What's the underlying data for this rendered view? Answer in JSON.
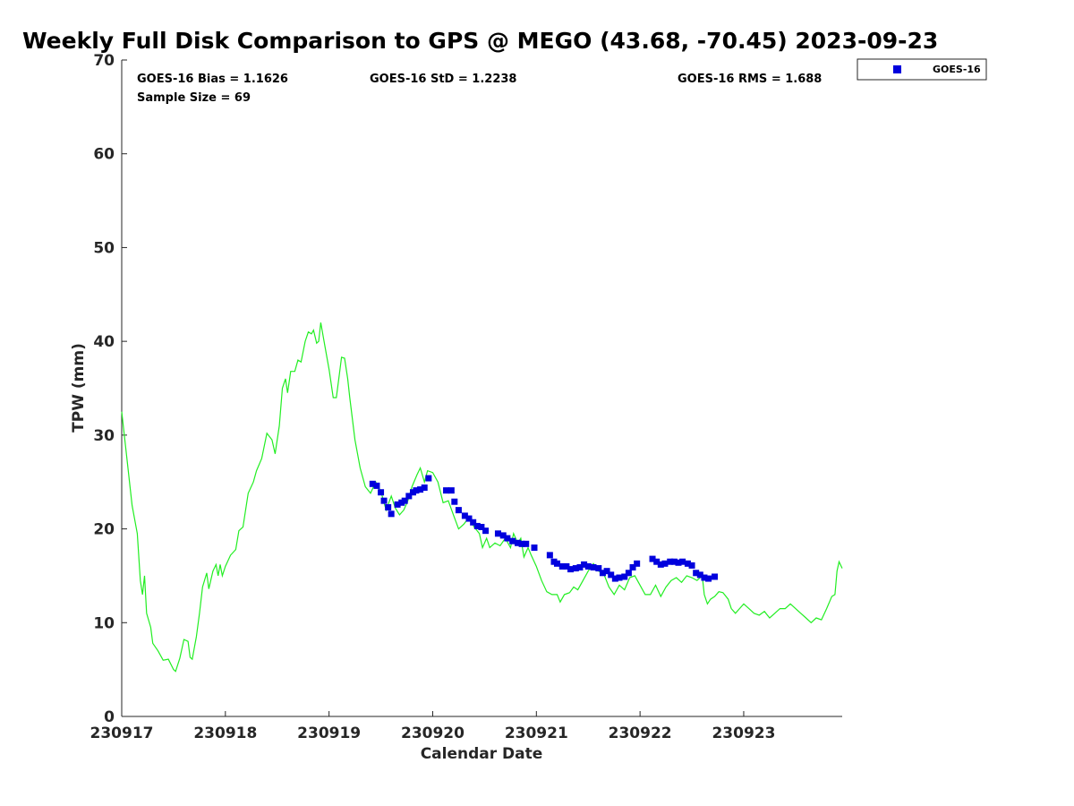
{
  "chart_data": {
    "type": "scatter",
    "title": "Weekly Full Disk Comparison to GPS @ MEGO (43.68, -70.45) 2023-09-23",
    "xlabel": "Calendar Date",
    "ylabel": "TPW (mm)",
    "xlim": [
      0,
      6.95
    ],
    "ylim": [
      0,
      70
    ],
    "x_ticks": [
      {
        "value": 0,
        "label": "230917"
      },
      {
        "value": 1,
        "label": "230918"
      },
      {
        "value": 2,
        "label": "230919"
      },
      {
        "value": 3,
        "label": "230920"
      },
      {
        "value": 4,
        "label": "230921"
      },
      {
        "value": 5,
        "label": "230922"
      },
      {
        "value": 6,
        "label": "230923"
      }
    ],
    "y_ticks": [
      0,
      10,
      20,
      30,
      40,
      50,
      60,
      70
    ],
    "stats": {
      "bias": "GOES-16 Bias = 1.1626",
      "std": "GOES-16 StD = 1.2238",
      "rms": "GOES-16 RMS = 1.688",
      "sample": "Sample Size = 69"
    },
    "legend": {
      "label": "GOES-16",
      "position": "top-right",
      "color": "#0000dd"
    },
    "series": [
      {
        "name": "GPS",
        "kind": "line",
        "color": "#22ee22",
        "points": [
          [
            0.0,
            32.5
          ],
          [
            0.05,
            27.5
          ],
          [
            0.1,
            22.5
          ],
          [
            0.15,
            19.5
          ],
          [
            0.18,
            14.5
          ],
          [
            0.2,
            13.0
          ],
          [
            0.22,
            15.0
          ],
          [
            0.24,
            11.0
          ],
          [
            0.28,
            9.5
          ],
          [
            0.3,
            7.8
          ],
          [
            0.35,
            7.0
          ],
          [
            0.4,
            6.0
          ],
          [
            0.45,
            6.1
          ],
          [
            0.5,
            5.0
          ],
          [
            0.52,
            4.8
          ],
          [
            0.56,
            6.2
          ],
          [
            0.6,
            8.2
          ],
          [
            0.64,
            8.0
          ],
          [
            0.66,
            6.3
          ],
          [
            0.68,
            6.1
          ],
          [
            0.72,
            8.5
          ],
          [
            0.75,
            11.0
          ],
          [
            0.78,
            13.8
          ],
          [
            0.82,
            15.3
          ],
          [
            0.84,
            13.6
          ],
          [
            0.88,
            15.5
          ],
          [
            0.91,
            16.2
          ],
          [
            0.93,
            15.0
          ],
          [
            0.95,
            16.2
          ],
          [
            0.97,
            15.0
          ],
          [
            1.0,
            16.0
          ],
          [
            1.05,
            17.2
          ],
          [
            1.1,
            17.8
          ],
          [
            1.13,
            19.8
          ],
          [
            1.17,
            20.2
          ],
          [
            1.22,
            23.8
          ],
          [
            1.27,
            25.0
          ],
          [
            1.3,
            26.2
          ],
          [
            1.35,
            27.5
          ],
          [
            1.4,
            30.2
          ],
          [
            1.45,
            29.5
          ],
          [
            1.48,
            28.0
          ],
          [
            1.52,
            31.0
          ],
          [
            1.55,
            35.0
          ],
          [
            1.58,
            36.0
          ],
          [
            1.6,
            34.5
          ],
          [
            1.63,
            36.8
          ],
          [
            1.67,
            36.8
          ],
          [
            1.7,
            38.0
          ],
          [
            1.73,
            37.8
          ],
          [
            1.77,
            40.0
          ],
          [
            1.8,
            41.0
          ],
          [
            1.83,
            40.8
          ],
          [
            1.85,
            41.2
          ],
          [
            1.88,
            39.8
          ],
          [
            1.9,
            40.0
          ],
          [
            1.92,
            42.0
          ],
          [
            1.96,
            39.5
          ],
          [
            2.0,
            37.0
          ],
          [
            2.04,
            34.0
          ],
          [
            2.07,
            34.0
          ],
          [
            2.1,
            36.5
          ],
          [
            2.12,
            38.3
          ],
          [
            2.15,
            38.2
          ],
          [
            2.18,
            36.0
          ],
          [
            2.2,
            34.0
          ],
          [
            2.25,
            29.5
          ],
          [
            2.3,
            26.5
          ],
          [
            2.35,
            24.5
          ],
          [
            2.4,
            23.8
          ],
          [
            2.45,
            25.0
          ],
          [
            2.5,
            24.0
          ],
          [
            2.55,
            22.0
          ],
          [
            2.6,
            23.5
          ],
          [
            2.64,
            22.2
          ],
          [
            2.68,
            21.5
          ],
          [
            2.72,
            22.0
          ],
          [
            2.76,
            23.0
          ],
          [
            2.8,
            24.5
          ],
          [
            2.85,
            25.8
          ],
          [
            2.88,
            26.5
          ],
          [
            2.92,
            25.0
          ],
          [
            2.95,
            26.2
          ],
          [
            3.0,
            26.0
          ],
          [
            3.05,
            25.0
          ],
          [
            3.1,
            22.8
          ],
          [
            3.15,
            23.0
          ],
          [
            3.2,
            21.5
          ],
          [
            3.25,
            20.0
          ],
          [
            3.3,
            20.5
          ],
          [
            3.35,
            21.2
          ],
          [
            3.4,
            20.2
          ],
          [
            3.45,
            19.5
          ],
          [
            3.48,
            18.0
          ],
          [
            3.52,
            19.0
          ],
          [
            3.55,
            18.0
          ],
          [
            3.6,
            18.5
          ],
          [
            3.65,
            18.2
          ],
          [
            3.7,
            19.0
          ],
          [
            3.75,
            18.0
          ],
          [
            3.78,
            19.5
          ],
          [
            3.82,
            18.5
          ],
          [
            3.85,
            19.0
          ],
          [
            3.88,
            17.0
          ],
          [
            3.92,
            18.0
          ],
          [
            3.95,
            17.2
          ],
          [
            4.0,
            16.0
          ],
          [
            4.05,
            14.5
          ],
          [
            4.1,
            13.3
          ],
          [
            4.15,
            13.0
          ],
          [
            4.2,
            13.0
          ],
          [
            4.23,
            12.2
          ],
          [
            4.27,
            13.0
          ],
          [
            4.32,
            13.2
          ],
          [
            4.36,
            13.8
          ],
          [
            4.4,
            13.5
          ],
          [
            4.45,
            14.5
          ],
          [
            4.5,
            15.5
          ],
          [
            4.55,
            16.3
          ],
          [
            4.6,
            15.5
          ],
          [
            4.65,
            15.2
          ],
          [
            4.7,
            13.8
          ],
          [
            4.75,
            13.0
          ],
          [
            4.8,
            14.0
          ],
          [
            4.85,
            13.5
          ],
          [
            4.9,
            14.8
          ],
          [
            4.95,
            15.0
          ],
          [
            5.0,
            14.0
          ],
          [
            5.05,
            13.0
          ],
          [
            5.1,
            13.0
          ],
          [
            5.15,
            14.0
          ],
          [
            5.2,
            12.8
          ],
          [
            5.25,
            13.8
          ],
          [
            5.3,
            14.5
          ],
          [
            5.35,
            14.8
          ],
          [
            5.4,
            14.3
          ],
          [
            5.45,
            15.0
          ],
          [
            5.5,
            14.8
          ],
          [
            5.55,
            14.5
          ],
          [
            5.6,
            15.0
          ],
          [
            5.62,
            13.0
          ],
          [
            5.65,
            12.0
          ],
          [
            5.68,
            12.5
          ],
          [
            5.72,
            12.8
          ],
          [
            5.76,
            13.3
          ],
          [
            5.8,
            13.2
          ],
          [
            5.85,
            12.5
          ],
          [
            5.88,
            11.5
          ],
          [
            5.92,
            11.0
          ],
          [
            5.96,
            11.5
          ],
          [
            6.0,
            12.0
          ],
          [
            6.05,
            11.5
          ],
          [
            6.1,
            11.0
          ],
          [
            6.15,
            10.8
          ],
          [
            6.2,
            11.2
          ],
          [
            6.25,
            10.5
          ],
          [
            6.3,
            11.0
          ],
          [
            6.35,
            11.5
          ],
          [
            6.4,
            11.5
          ],
          [
            6.45,
            12.0
          ],
          [
            6.5,
            11.5
          ],
          [
            6.55,
            11.0
          ],
          [
            6.6,
            10.5
          ],
          [
            6.65,
            10.0
          ],
          [
            6.7,
            10.5
          ],
          [
            6.75,
            10.3
          ],
          [
            6.8,
            11.5
          ],
          [
            6.85,
            12.8
          ],
          [
            6.88,
            13.0
          ],
          [
            6.9,
            15.5
          ],
          [
            6.92,
            16.5
          ],
          [
            6.95,
            15.8
          ]
        ]
      },
      {
        "name": "GOES-16",
        "kind": "scatter",
        "color": "#0000dd",
        "points": [
          [
            2.42,
            24.8
          ],
          [
            2.46,
            24.6
          ],
          [
            2.5,
            23.9
          ],
          [
            2.53,
            23.0
          ],
          [
            2.57,
            22.3
          ],
          [
            2.6,
            21.6
          ],
          [
            2.66,
            22.6
          ],
          [
            2.7,
            22.8
          ],
          [
            2.73,
            23.0
          ],
          [
            2.77,
            23.5
          ],
          [
            2.81,
            23.9
          ],
          [
            2.84,
            24.1
          ],
          [
            2.88,
            24.2
          ],
          [
            2.92,
            24.4
          ],
          [
            2.96,
            25.4
          ],
          [
            3.13,
            24.1
          ],
          [
            3.18,
            24.1
          ],
          [
            3.21,
            22.9
          ],
          [
            3.25,
            22.0
          ],
          [
            3.31,
            21.4
          ],
          [
            3.35,
            21.1
          ],
          [
            3.39,
            20.7
          ],
          [
            3.43,
            20.3
          ],
          [
            3.47,
            20.2
          ],
          [
            3.51,
            19.8
          ],
          [
            3.63,
            19.5
          ],
          [
            3.68,
            19.3
          ],
          [
            3.72,
            19.0
          ],
          [
            3.77,
            18.7
          ],
          [
            3.82,
            18.5
          ],
          [
            3.86,
            18.4
          ],
          [
            3.9,
            18.4
          ],
          [
            3.98,
            18.0
          ],
          [
            4.13,
            17.2
          ],
          [
            4.17,
            16.5
          ],
          [
            4.2,
            16.3
          ],
          [
            4.25,
            16.0
          ],
          [
            4.29,
            16.0
          ],
          [
            4.33,
            15.7
          ],
          [
            4.38,
            15.8
          ],
          [
            4.42,
            15.9
          ],
          [
            4.46,
            16.2
          ],
          [
            4.5,
            16.0
          ],
          [
            4.55,
            15.9
          ],
          [
            4.6,
            15.8
          ],
          [
            4.64,
            15.3
          ],
          [
            4.68,
            15.5
          ],
          [
            4.72,
            15.1
          ],
          [
            4.76,
            14.7
          ],
          [
            4.8,
            14.8
          ],
          [
            4.85,
            14.9
          ],
          [
            4.89,
            15.3
          ],
          [
            4.93,
            15.9
          ],
          [
            4.97,
            16.3
          ],
          [
            5.12,
            16.8
          ],
          [
            5.16,
            16.5
          ],
          [
            5.2,
            16.2
          ],
          [
            5.24,
            16.3
          ],
          [
            5.29,
            16.5
          ],
          [
            5.33,
            16.5
          ],
          [
            5.37,
            16.4
          ],
          [
            5.41,
            16.5
          ],
          [
            5.46,
            16.3
          ],
          [
            5.5,
            16.1
          ],
          [
            5.54,
            15.3
          ],
          [
            5.58,
            15.1
          ],
          [
            5.62,
            14.8
          ],
          [
            5.66,
            14.7
          ],
          [
            5.72,
            14.9
          ]
        ]
      }
    ]
  }
}
